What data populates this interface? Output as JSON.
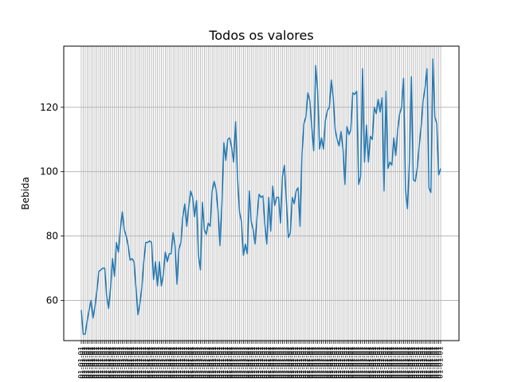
{
  "chart_data": {
    "type": "line",
    "title": "Todos os valores",
    "xlabel": "",
    "ylabel": "Bebida",
    "ylim": [
      47.5,
      139.0
    ],
    "yticks": [
      60,
      80,
      100,
      120
    ],
    "ytick_labels": [
      "60",
      "80",
      "100",
      "120"
    ],
    "grid": true,
    "line_color": "#1f77b4",
    "grid_color": "#b0b0b0",
    "xtick_label": "01-01-01",
    "values": [
      57.0,
      49.5,
      49.5,
      53.5,
      57.0,
      60.0,
      54.5,
      58.0,
      63.0,
      69.0,
      69.5,
      70.0,
      70.0,
      61.5,
      57.5,
      64.0,
      73.0,
      67.5,
      78.0,
      75.0,
      82.0,
      87.5,
      82.0,
      80.0,
      77.0,
      72.5,
      73.0,
      72.0,
      64.0,
      55.5,
      59.0,
      64.0,
      72.0,
      78.0,
      78.0,
      78.5,
      78.0,
      66.5,
      72.0,
      64.5,
      72.0,
      64.5,
      68.0,
      75.0,
      72.0,
      74.5,
      74.5,
      81.0,
      77.0,
      65.0,
      76.0,
      78.0,
      86.0,
      90.0,
      83.0,
      89.0,
      94.0,
      92.0,
      86.0,
      91.0,
      74.0,
      69.5,
      90.5,
      82.0,
      80.5,
      84.0,
      83.0,
      94.0,
      97.0,
      94.5,
      88.0,
      77.0,
      90.0,
      109.0,
      103.5,
      110.0,
      110.5,
      107.5,
      103.0,
      115.5,
      98.0,
      87.5,
      84.5,
      74.0,
      77.5,
      74.5,
      94.0,
      84.5,
      82.0,
      77.5,
      86.0,
      93.0,
      92.0,
      92.5,
      83.5,
      77.5,
      92.0,
      81.5,
      95.5,
      89.5,
      92.0,
      92.0,
      84.0,
      98.5,
      102.0,
      91.0,
      79.5,
      81.0,
      92.0,
      90.0,
      94.0,
      95.0,
      83.0,
      105.5,
      115.0,
      117.0,
      124.5,
      122.0,
      114.0,
      106.5,
      133.0,
      125.0,
      107.0,
      110.5,
      107.0,
      116.0,
      119.0,
      120.0,
      128.5,
      123.0,
      113.0,
      110.0,
      108.0,
      112.5,
      107.0,
      96.0,
      114.0,
      111.5,
      113.0,
      124.5,
      124.0,
      125.0,
      96.0,
      98.5,
      132.0,
      103.0,
      114.5,
      103.0,
      111.0,
      110.0,
      120.0,
      118.0,
      122.5,
      118.5,
      123.0,
      94.0,
      125.0,
      101.0,
      103.0,
      102.0,
      110.5,
      105.0,
      113.0,
      118.0,
      120.0,
      129.0,
      94.5,
      88.5,
      103.0,
      129.5,
      97.5,
      97.0,
      101.0,
      108.0,
      114.0,
      122.0,
      126.0,
      132.0,
      95.0,
      93.5,
      135.0,
      117.0,
      115.0,
      99.0,
      101.0
    ]
  }
}
